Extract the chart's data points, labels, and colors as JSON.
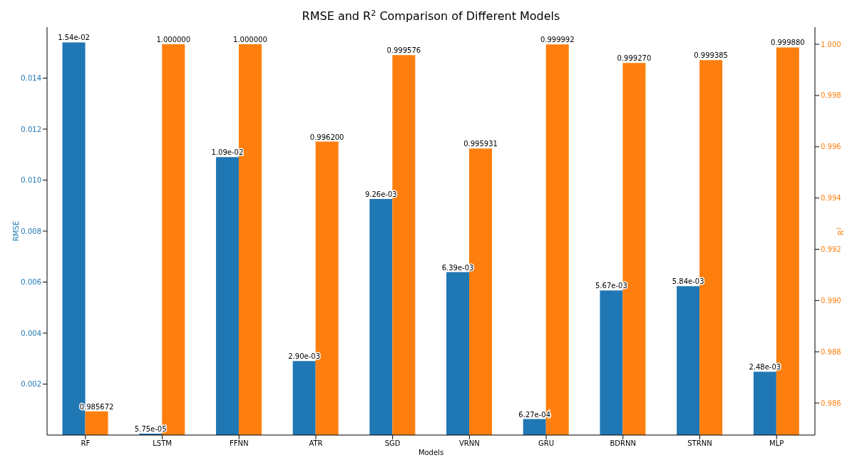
{
  "chart_data": {
    "type": "bar",
    "title": "RMSE and R$^{2}$ Comparison of Different Models",
    "xlabel": "Models",
    "ylabel": "RMSE",
    "y2label": "R$^{2}$",
    "categories": [
      "RF",
      "LSTM",
      "FFNN",
      "ATR",
      "SGD",
      "VRNN",
      "GRU",
      "BDRNN",
      "STRNN",
      "MLP"
    ],
    "series": [
      {
        "color": "#1f77b4",
        "values": [
          0.0154,
          5.75e-05,
          0.0109,
          0.0029,
          0.00926,
          0.00639,
          0.000627,
          0.00567,
          0.00584,
          0.00248
        ],
        "value_labels": [
          "1.54e-02",
          "5.75e-05",
          "1.09e-02",
          "2.90e-03",
          "9.26e-03",
          "6.39e-03",
          "6.27e-04",
          "5.67e-03",
          "5.84e-03",
          "2.48e-03"
        ]
      },
      {
        "color": "#ff7f0e",
        "axis": "y2",
        "values": [
          0.985672,
          1.0,
          1.0,
          0.9962,
          0.999576,
          0.995931,
          0.999992,
          0.99927,
          0.999385,
          0.99988
        ],
        "value_labels": [
          "0.985672",
          "1.000000",
          "1.000000",
          "0.996200",
          "0.999576",
          "0.995931",
          "0.999992",
          "0.999270",
          "0.999385",
          "0.999880"
        ]
      }
    ],
    "ylim": [
      0,
      0.016
    ],
    "yticks": [
      {
        "value": 0.002,
        "label": "0.002"
      },
      {
        "value": 0.004,
        "label": "0.004"
      },
      {
        "value": 0.006,
        "label": "0.006"
      },
      {
        "value": 0.008,
        "label": "0.008"
      },
      {
        "value": 0.01,
        "label": "0.010"
      },
      {
        "value": 0.012,
        "label": "0.012"
      },
      {
        "value": 0.014,
        "label": "0.014"
      }
    ],
    "y2lim": [
      0.98475,
      1.00067
    ],
    "y2ticks": [
      {
        "value": 0.986,
        "label": "0.986"
      },
      {
        "value": 0.988,
        "label": "0.988"
      },
      {
        "value": 0.99,
        "label": "0.990"
      },
      {
        "value": 0.992,
        "label": "0.992"
      },
      {
        "value": 0.994,
        "label": "0.994"
      },
      {
        "value": 0.996,
        "label": "0.996"
      },
      {
        "value": 0.998,
        "label": "0.998"
      },
      {
        "value": 1,
        "label": "1.000"
      }
    ],
    "grid": false,
    "legend": false
  }
}
